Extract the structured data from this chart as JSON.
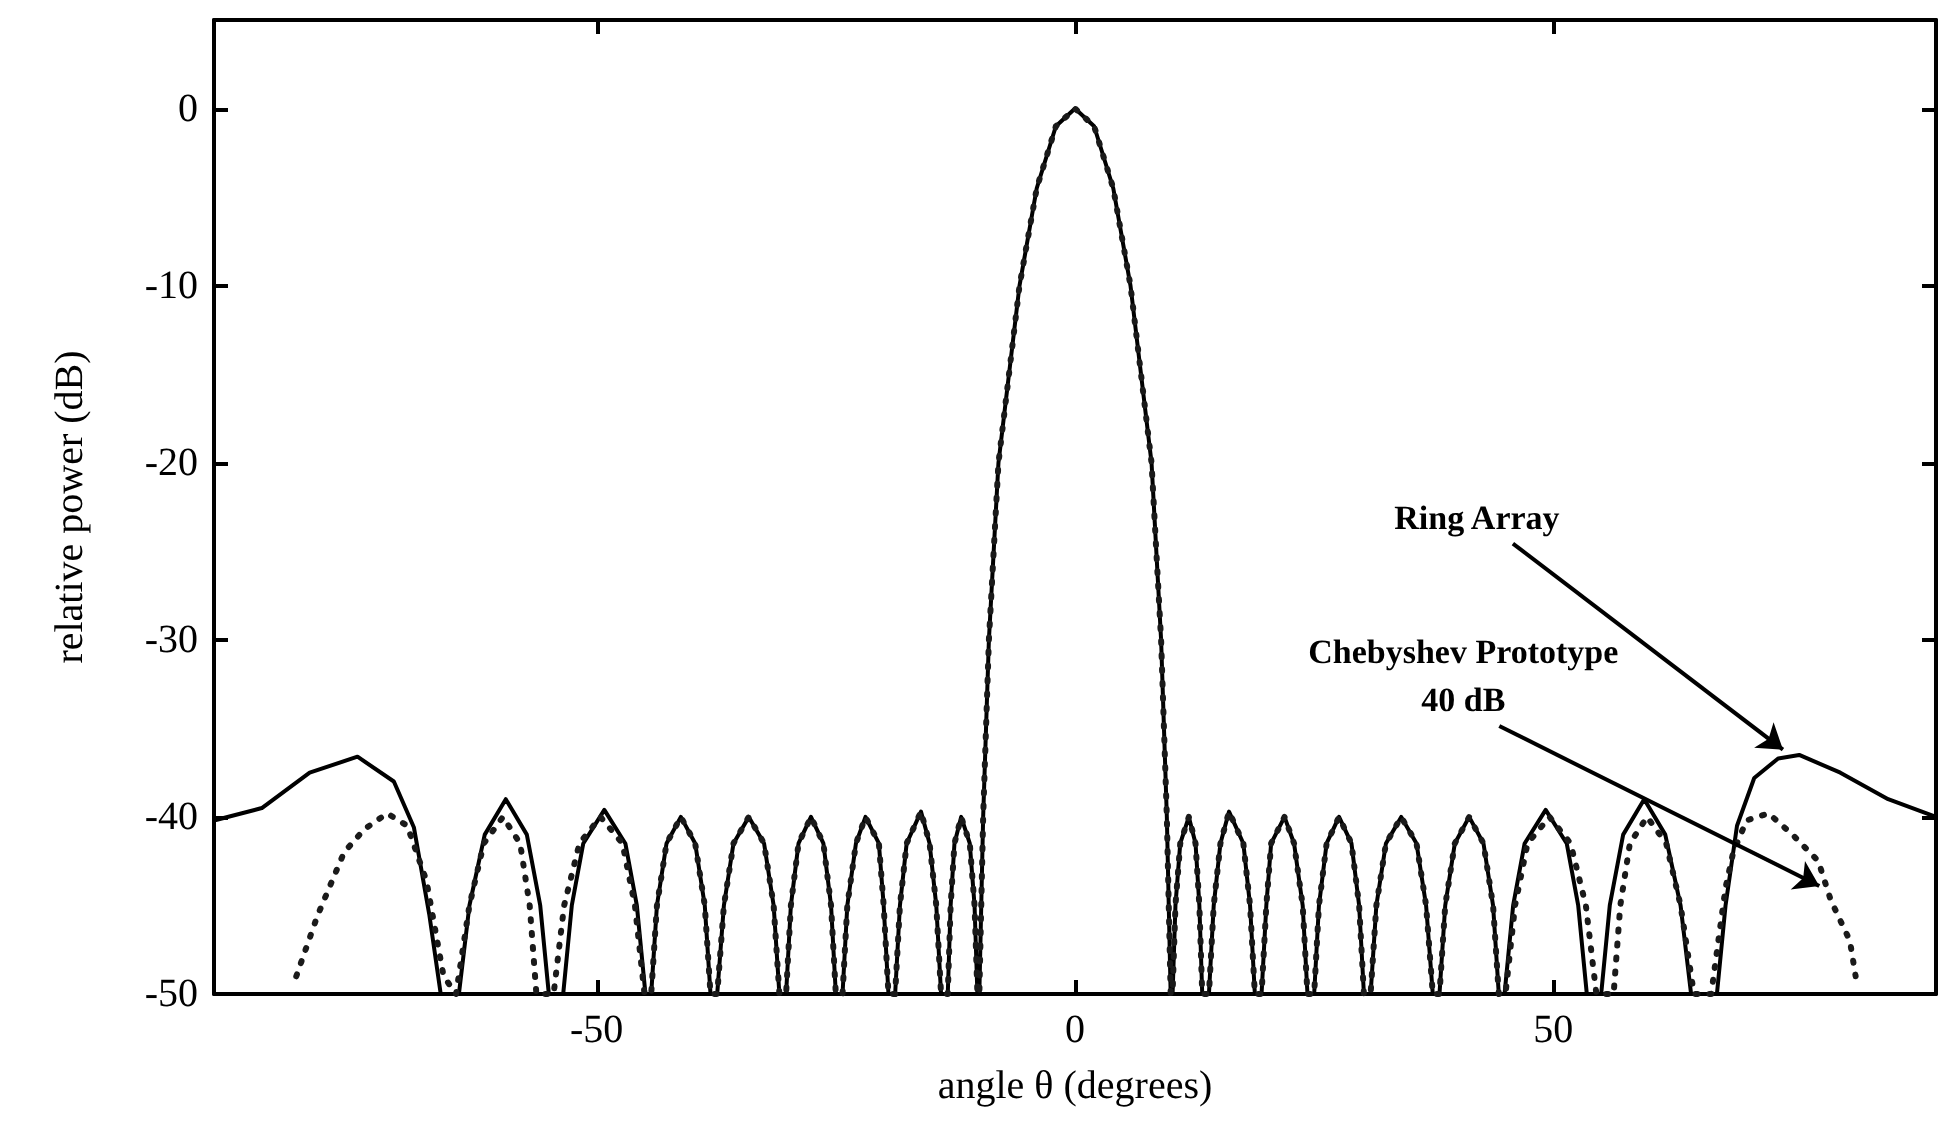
{
  "chart_data": {
    "type": "line",
    "xlabel": "angle θ (degrees)",
    "ylabel": "relative power (dB)",
    "xlim": [
      -90,
      90
    ],
    "xticks": [
      -50,
      0,
      50
    ],
    "ylim": [
      -50,
      5
    ],
    "yticks": [
      -50,
      -40,
      -30,
      -20,
      -10,
      0
    ],
    "marker": "none",
    "series": [
      {
        "color": "#000000",
        "line_style": "solid",
        "x": [
          -90,
          -85,
          -80,
          -75,
          -71.2,
          -69.1,
          -67.5,
          -66.3,
          -64.4,
          -63.3,
          -61.7,
          -59.5,
          -57.3,
          -55.9,
          -55,
          -53.5,
          -52.6,
          -51.4,
          -49.2,
          -47,
          -45.8,
          -44.9,
          -44.3,
          -43.7,
          -42.7,
          -41.2,
          -39.7,
          -38.7,
          -38.1,
          -37.4,
          -36.7,
          -35.7,
          -34.1,
          -32.5,
          -31.5,
          -30.9,
          -30.2,
          -29.7,
          -28.9,
          -27.6,
          -26.3,
          -25.5,
          -25,
          -24.3,
          -23.8,
          -22.9,
          -21.9,
          -20.5,
          -20,
          -19.5,
          -18.8,
          -18.3,
          -17.6,
          -16.1,
          -15.2,
          -14.5,
          -14,
          -13.3,
          -13,
          -12.6,
          -11.9,
          -11,
          -10.5,
          -10.2,
          -10,
          -9.6,
          -9,
          -8,
          -5.8,
          -4,
          -2,
          0,
          2,
          4,
          5.8,
          8,
          9,
          9.6,
          10,
          10.2,
          10.5,
          11,
          11.9,
          12.6,
          13,
          13.3,
          14,
          14.5,
          15.2,
          16.1,
          17.6,
          18.3,
          18.8,
          19.5,
          20,
          20.5,
          21.9,
          22.9,
          23.8,
          24.3,
          25,
          25.5,
          26.3,
          27.6,
          28.9,
          29.7,
          30.2,
          30.9,
          31.5,
          32.5,
          34.1,
          35.7,
          36.7,
          37.4,
          38.1,
          38.7,
          39.7,
          41.2,
          42.7,
          43.7,
          44.3,
          44.9,
          45.8,
          47,
          49.2,
          51.4,
          52.6,
          53.5,
          55,
          55.9,
          57.3,
          59.5,
          61.7,
          63.3,
          64.4,
          67.1,
          68,
          69.2,
          71,
          73.5,
          75.7,
          80,
          85,
          90
        ],
        "values": [
          -40.2,
          -39.5,
          -37.5,
          -36.6,
          -38,
          -40.6,
          -45.5,
          -50,
          -50,
          -45,
          -41,
          -39,
          -41,
          -45,
          -50,
          -50,
          -45,
          -41.5,
          -39.6,
          -41.5,
          -45,
          -50,
          -50,
          -45,
          -41.5,
          -40,
          -41.5,
          -45,
          -50,
          -50,
          -45,
          -41.5,
          -40,
          -41.5,
          -45,
          -50,
          -50,
          -45,
          -41.5,
          -40,
          -41.5,
          -45,
          -50,
          -50,
          -45,
          -41.5,
          -40,
          -41.5,
          -45,
          -50,
          -50,
          -45,
          -41.5,
          -39.7,
          -41.5,
          -45,
          -50,
          -50,
          -45,
          -41.5,
          -40,
          -41.5,
          -45,
          -50,
          -50,
          -40,
          -30,
          -20,
          -10,
          -4.5,
          -1,
          0,
          -1,
          -4.5,
          -10,
          -20,
          -30,
          -40,
          -50,
          -50,
          -45,
          -41.5,
          -40,
          -41.5,
          -45,
          -50,
          -50,
          -45,
          -41.5,
          -39.7,
          -41.5,
          -45,
          -50,
          -50,
          -45,
          -41.5,
          -40,
          -41.5,
          -45,
          -50,
          -50,
          -45,
          -41.5,
          -40,
          -41.5,
          -45,
          -50,
          -50,
          -45,
          -41.5,
          -40,
          -41.5,
          -45,
          -50,
          -50,
          -45,
          -41.5,
          -40,
          -41.5,
          -45,
          -50,
          -50,
          -45,
          -41.5,
          -39.6,
          -41.5,
          -45,
          -50,
          -50,
          -45,
          -41,
          -39,
          -41,
          -45,
          -50,
          -50,
          -45,
          -40.5,
          -37.8,
          -36.7,
          -36.5,
          -37.5,
          -39,
          -40
        ]
      },
      {
        "color": "#1a1a1a",
        "line_style": "dotted",
        "x": [
          -81.4,
          -79.2,
          -76.4,
          -74.3,
          -71.9,
          -69.8,
          -67.8,
          -66,
          -64.7,
          -63.3,
          -61.8,
          -59.8,
          -58,
          -57,
          -56.3,
          -54.5,
          -53.4,
          -51.8,
          -49.6,
          -47.3,
          -46,
          -45,
          -44.3,
          -43.7,
          -42.7,
          -41.2,
          -39.7,
          -38.7,
          -38.1,
          -37.4,
          -36.7,
          -35.7,
          -34.1,
          -32.5,
          -31.5,
          -30.9,
          -30.2,
          -29.7,
          -28.9,
          -27.6,
          -26.3,
          -25.5,
          -25,
          -24.3,
          -23.8,
          -22.9,
          -21.9,
          -20.5,
          -20,
          -19.5,
          -18.8,
          -18.3,
          -17.6,
          -16.1,
          -15.2,
          -14.5,
          -14,
          -13.3,
          -13,
          -12.6,
          -11.9,
          -11,
          -10.5,
          -10.2,
          -10,
          -9.6,
          -9,
          -8,
          -5.8,
          -4,
          -2,
          0,
          2,
          4,
          5.8,
          8,
          9,
          9.6,
          10,
          10.2,
          10.5,
          11,
          11.9,
          12.6,
          13,
          13.3,
          14,
          14.5,
          15.2,
          16.1,
          17.6,
          18.3,
          18.8,
          19.5,
          20,
          20.5,
          21.9,
          22.9,
          23.8,
          24.3,
          25,
          25.5,
          26.3,
          27.6,
          28.9,
          29.7,
          30.2,
          30.9,
          31.5,
          32.5,
          34.1,
          35.7,
          36.7,
          37.4,
          38.1,
          38.7,
          39.7,
          41.2,
          42.7,
          43.7,
          44.3,
          45,
          46,
          47.3,
          49.6,
          51.8,
          53.4,
          54.5,
          56.3,
          57,
          58,
          59.8,
          61.8,
          63.3,
          64.7,
          66.5,
          68,
          68.8,
          70.2,
          72.5,
          75,
          77.7,
          79,
          81,
          81.6
        ],
        "values": [
          -49,
          -45.6,
          -42,
          -40.7,
          -39.8,
          -40.5,
          -43.6,
          -49,
          -50,
          -45,
          -41.5,
          -40,
          -41.5,
          -45,
          -50,
          -50,
          -45,
          -41.5,
          -40,
          -41.5,
          -45,
          -50,
          -50,
          -45,
          -41.5,
          -40,
          -41.5,
          -45,
          -50,
          -50,
          -45,
          -41.5,
          -40,
          -41.5,
          -45,
          -50,
          -50,
          -45,
          -41.5,
          -40,
          -41.5,
          -45,
          -50,
          -50,
          -45,
          -41.5,
          -40,
          -41.5,
          -45,
          -50,
          -50,
          -45,
          -41.5,
          -39.7,
          -41.5,
          -45,
          -50,
          -50,
          -45,
          -41.5,
          -40,
          -41.5,
          -45,
          -50,
          -50,
          -40,
          -30,
          -20,
          -10,
          -4.5,
          -1,
          0,
          -1,
          -4.5,
          -10,
          -20,
          -30,
          -40,
          -50,
          -50,
          -45,
          -41.5,
          -40,
          -41.5,
          -45,
          -50,
          -50,
          -45,
          -41.5,
          -39.7,
          -41.5,
          -45,
          -50,
          -50,
          -45,
          -41.5,
          -40,
          -41.5,
          -45,
          -50,
          -50,
          -45,
          -41.5,
          -40,
          -41.5,
          -45,
          -50,
          -50,
          -45,
          -41.5,
          -40,
          -41.5,
          -45,
          -50,
          -50,
          -45,
          -41.5,
          -40,
          -41.5,
          -45,
          -50,
          -50,
          -45,
          -41.5,
          -40,
          -41.5,
          -45,
          -50,
          -50,
          -45,
          -41.5,
          -40,
          -41.5,
          -45,
          -50,
          -50,
          -44,
          -42,
          -40.2,
          -39.8,
          -41,
          -42.5,
          -44.7,
          -47,
          -49
        ]
      }
    ],
    "annotations": [
      {
        "text": "Ring Array",
        "x": 74,
        "y": -36.2
      },
      {
        "text": "Chebyshev Prototype\n40 dB",
        "x": 77.8,
        "y": -43.9
      }
    ]
  }
}
